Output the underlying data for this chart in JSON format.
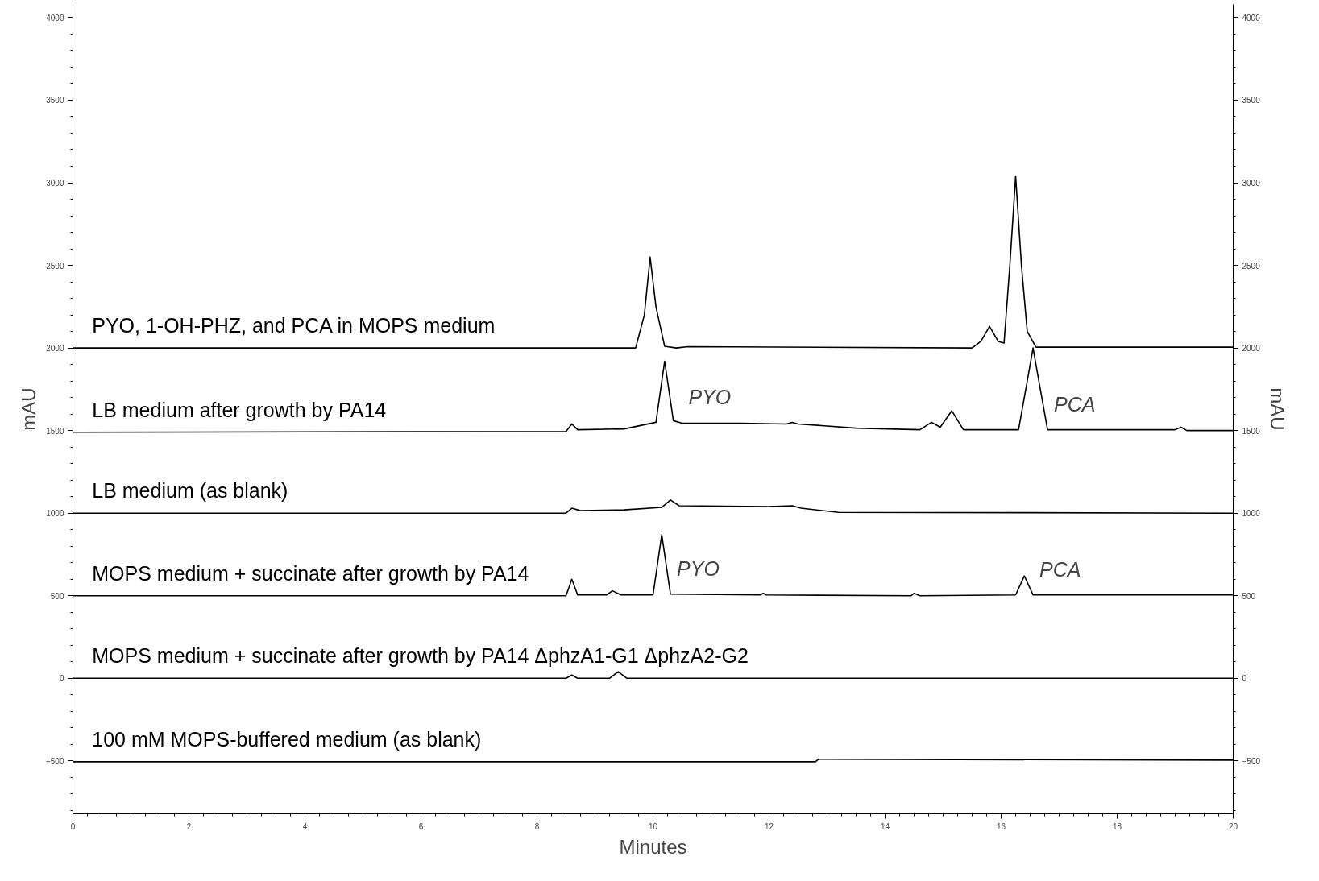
{
  "chart_data": {
    "type": "line",
    "xlabel": "Minutes",
    "ylabel": "mAU",
    "y2label": "mAU",
    "xlim": [
      0,
      20
    ],
    "xticks": [
      0,
      2,
      4,
      6,
      8,
      10,
      12,
      14,
      16,
      18,
      20
    ],
    "ylim": [
      -820,
      4080
    ],
    "yticks": [
      -500,
      0,
      500,
      1000,
      1500,
      2000,
      2500,
      3000,
      3500,
      4000
    ],
    "y2lim": [
      -820,
      4080
    ],
    "y2ticks": [
      -500,
      0,
      500,
      1000,
      1500,
      2000,
      2500,
      3000,
      3500,
      4000
    ],
    "grid": false,
    "marker": "none",
    "line_style": "solid",
    "series": [
      {
        "name": "PYO, 1-OH-PHZ, and PCA in MOPS medium",
        "color": "#000000",
        "x": [
          0,
          9.7,
          9.85,
          9.95,
          10.05,
          10.2,
          10.4,
          10.6,
          15.5,
          15.65,
          15.8,
          15.95,
          16.05,
          16.15,
          16.25,
          16.35,
          16.45,
          16.6,
          20
        ],
        "values": [
          2000,
          2000,
          2200,
          2550,
          2250,
          2010,
          2000,
          2008,
          2000,
          2040,
          2130,
          2040,
          2030,
          2500,
          3040,
          2500,
          2100,
          2005,
          2005
        ]
      },
      {
        "name": "LB medium after growth by PA14",
        "color": "#000000",
        "x": [
          0,
          8.5,
          8.6,
          8.7,
          9.5,
          10.05,
          10.2,
          10.35,
          10.5,
          11.5,
          12.3,
          12.4,
          12.5,
          13.5,
          14.6,
          14.8,
          14.95,
          15.15,
          15.35,
          16.3,
          16.45,
          16.55,
          16.65,
          16.8,
          19.0,
          19.1,
          19.2,
          20
        ],
        "values": [
          1490,
          1495,
          1540,
          1505,
          1510,
          1550,
          1920,
          1560,
          1545,
          1545,
          1540,
          1550,
          1540,
          1515,
          1505,
          1550,
          1520,
          1620,
          1505,
          1505,
          1800,
          2000,
          1800,
          1505,
          1505,
          1520,
          1500,
          1500
        ]
      },
      {
        "name": "LB medium (as blank)",
        "color": "#000000",
        "x": [
          0,
          8.5,
          8.6,
          8.75,
          9.5,
          10.15,
          10.3,
          10.45,
          12.0,
          12.4,
          12.55,
          13.2,
          20
        ],
        "values": [
          1000,
          1000,
          1030,
          1015,
          1020,
          1035,
          1080,
          1045,
          1040,
          1045,
          1030,
          1005,
          1000
        ]
      },
      {
        "name": "MOPS medium + succinate after growth by PA14",
        "color": "#000000",
        "x": [
          0,
          8.5,
          8.6,
          8.7,
          9.2,
          9.3,
          9.45,
          10.0,
          10.15,
          10.3,
          11.85,
          11.9,
          11.95,
          14.45,
          14.5,
          14.6,
          16.25,
          16.4,
          16.55,
          20
        ],
        "values": [
          500,
          500,
          600,
          505,
          505,
          530,
          505,
          505,
          870,
          510,
          505,
          515,
          505,
          500,
          515,
          500,
          505,
          620,
          505,
          505
        ]
      },
      {
        "name": "MOPS medium + succinate after growth by PA14 ΔphzA1-G1 ΔphzA2-G2",
        "color": "#000000",
        "x": [
          0,
          8.5,
          8.6,
          8.7,
          9.25,
          9.4,
          9.55,
          20
        ],
        "values": [
          0,
          0,
          20,
          0,
          0,
          40,
          0,
          0
        ]
      },
      {
        "name": "100 mM MOPS-buffered medium (as blank)",
        "color": "#000000",
        "x": [
          0,
          12.8,
          12.85,
          20
        ],
        "values": [
          -505,
          -505,
          -490,
          -495
        ]
      }
    ],
    "annotations": [
      {
        "text": "PYO",
        "x": 10.5,
        "y": 1545
      },
      {
        "text": "PCA",
        "x": 16.8,
        "y": 1505
      },
      {
        "text": "PYO",
        "x": 10.3,
        "y": 510
      },
      {
        "text": "PCA",
        "x": 16.55,
        "y": 505
      }
    ]
  }
}
